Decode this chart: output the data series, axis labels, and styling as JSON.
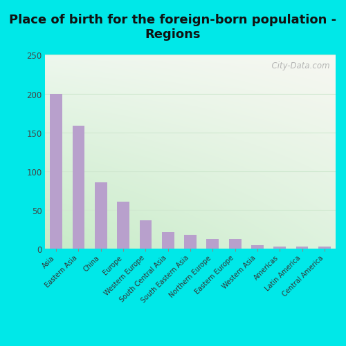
{
  "title": "Place of birth for the foreign-born population -\nRegions",
  "categories": [
    "Asia",
    "Eastern Asia",
    "China",
    "Europe",
    "Western Europe",
    "South Central Asia",
    "South Eastern Asia",
    "Northern Europe",
    "Eastern Europe",
    "Western Asia",
    "Americas",
    "Latin America",
    "Central America"
  ],
  "values": [
    200,
    159,
    86,
    61,
    37,
    22,
    18,
    13,
    13,
    5,
    3,
    3,
    3
  ],
  "bar_color": "#b8a0cc",
  "background_outer": "#00e8e8",
  "ylim": [
    0,
    250
  ],
  "yticks": [
    0,
    50,
    100,
    150,
    200,
    250
  ],
  "title_fontsize": 13,
  "watermark": "  City-Data.com",
  "gradient_colors_top": "#f0f8f0",
  "gradient_colors_bottom": "#c8e8c8",
  "gradient_right": "#f8f8f8",
  "gridline_color": "#d0e8d0"
}
